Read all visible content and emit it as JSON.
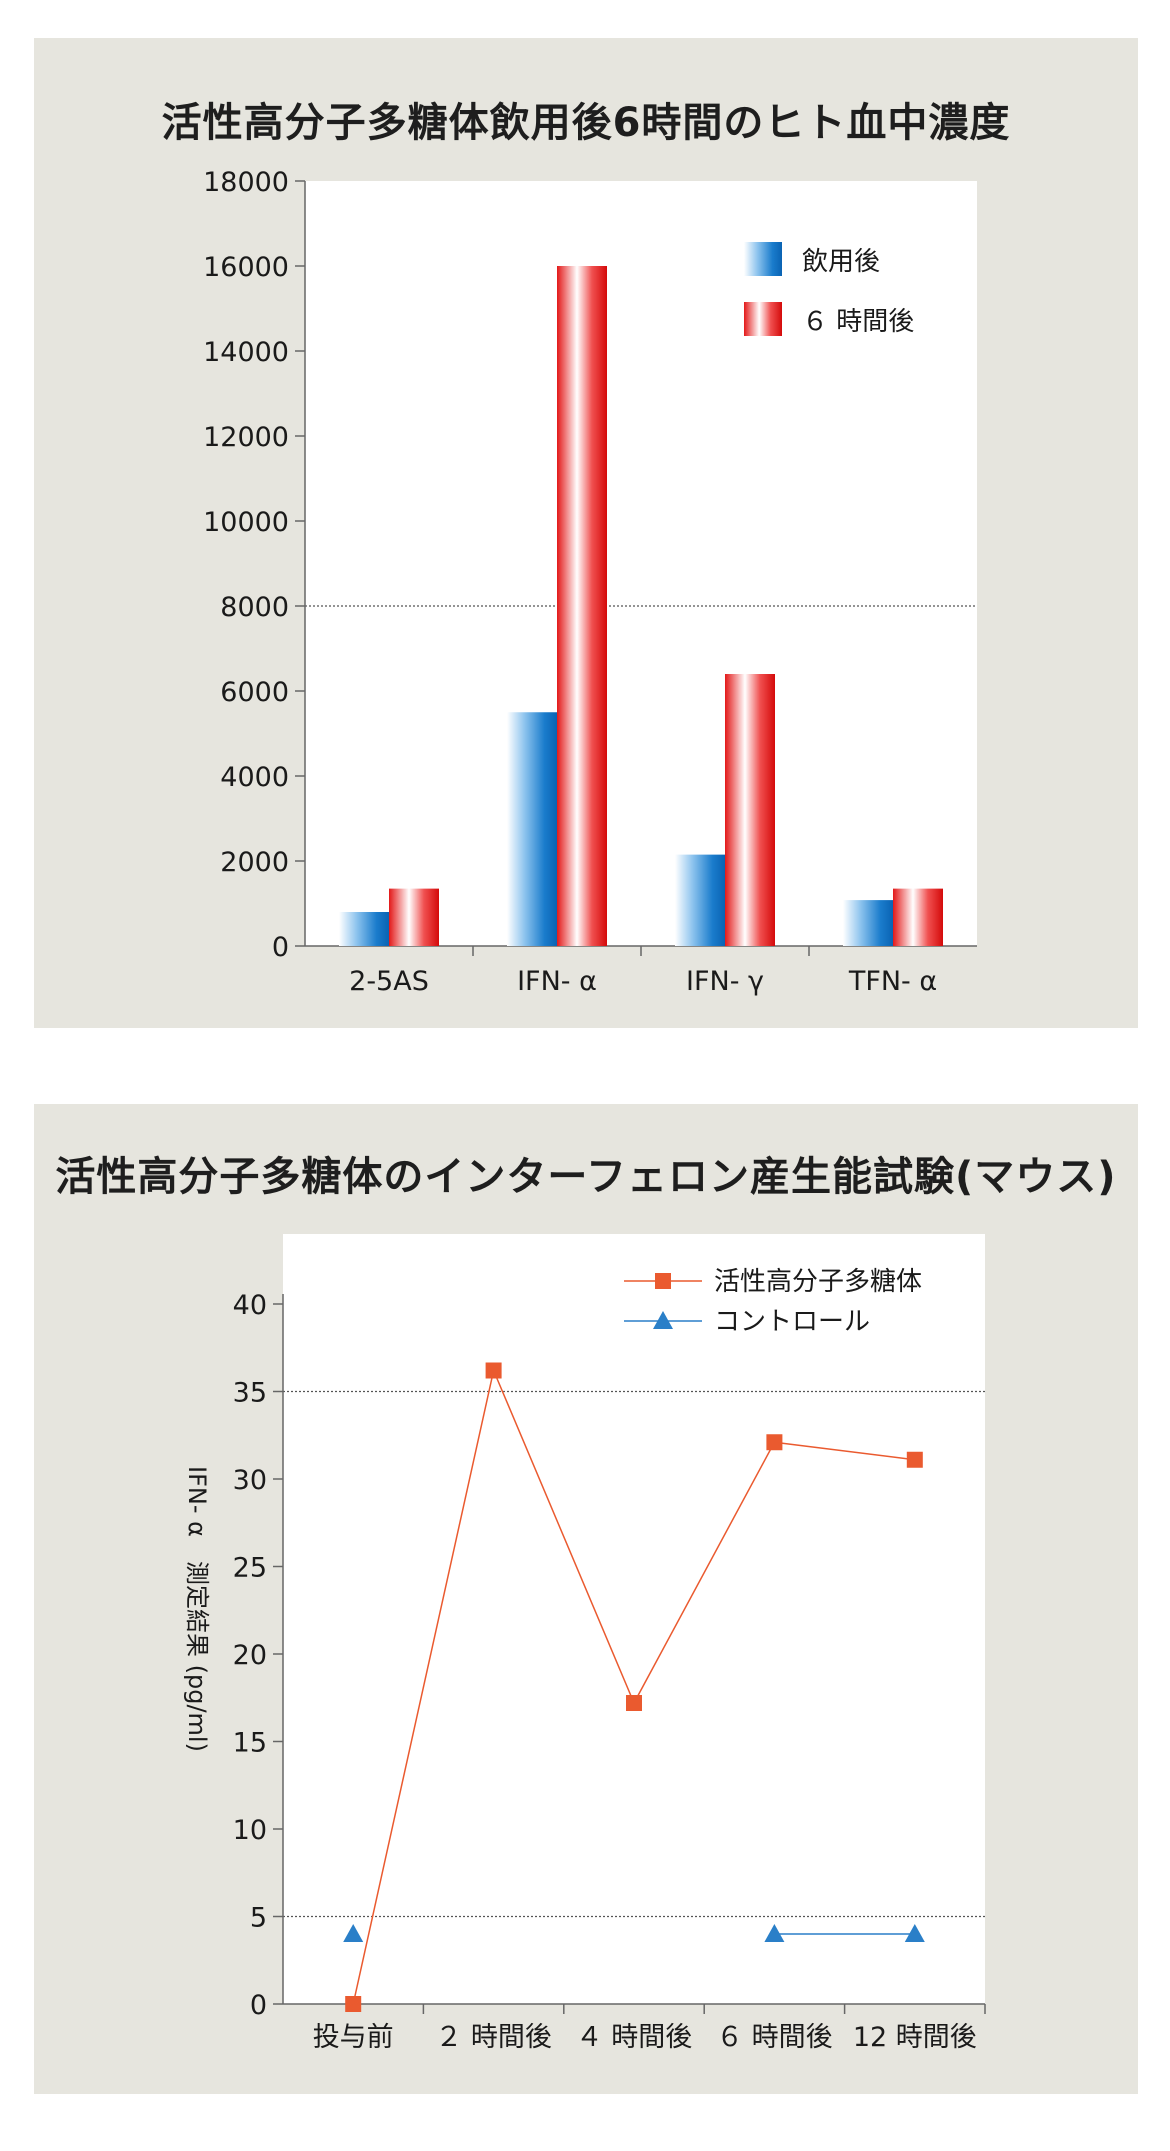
{
  "chart_data": [
    {
      "type": "bar",
      "title": "活性高分子多糖体飲用後6時間のヒト血中濃度",
      "categories": [
        "2-5AS",
        "IFN- α",
        "IFN- γ",
        "TFN- α"
      ],
      "series": [
        {
          "name": "飲用後",
          "values": [
            800,
            5500,
            2150,
            1080
          ]
        },
        {
          "name": "６ 時間後",
          "values": [
            1350,
            16000,
            6400,
            1350
          ]
        }
      ],
      "ylim": [
        0,
        18000
      ],
      "yticks": [
        "0",
        "2000",
        "4000",
        "6000",
        "8000",
        "10000",
        "12000",
        "14000",
        "16000",
        "18000"
      ],
      "reference_line": 8000,
      "legend_position": "top-right",
      "colors": {
        "series1": "#1a7ccc",
        "series2": "#e31818"
      }
    },
    {
      "type": "line",
      "title": "活性高分子多糖体のインターフェロン産生能試験(マウス)",
      "categories": [
        "投与前",
        "２ 時間後",
        "４ 時間後",
        "６ 時間後",
        "12 時間後"
      ],
      "ylabel": "IFN- α　測定結果 (pg/ml)",
      "ylim": [
        0,
        40
      ],
      "yticks": [
        "0",
        "5",
        "10",
        "15",
        "20",
        "25",
        "30",
        "35",
        "40"
      ],
      "reference_lines": [
        5,
        35
      ],
      "series": [
        {
          "name": "活性高分子多糖体",
          "marker": "square",
          "values": [
            0,
            36.2,
            17.2,
            32.1,
            31.1
          ]
        },
        {
          "name": "コントロール",
          "marker": "triangle",
          "values": [
            4,
            null,
            null,
            4,
            4
          ]
        }
      ],
      "legend_position": "top-right",
      "colors": {
        "series1": "#ea5a2f",
        "series2": "#2a7fc8"
      }
    }
  ]
}
